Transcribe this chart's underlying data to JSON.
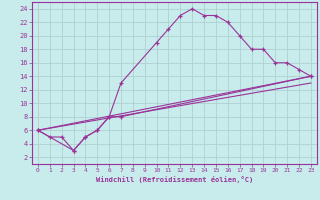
{
  "xlabel": "Windchill (Refroidissement éolien,°C)",
  "bg_color": "#c8ecec",
  "grid_color": "#b0d0d0",
  "line_color": "#993399",
  "xlim": [
    -0.5,
    23.5
  ],
  "ylim": [
    1,
    25
  ],
  "xticks": [
    0,
    1,
    2,
    3,
    4,
    5,
    6,
    7,
    8,
    9,
    10,
    11,
    12,
    13,
    14,
    15,
    16,
    17,
    18,
    19,
    20,
    21,
    22,
    23
  ],
  "yticks": [
    2,
    4,
    6,
    8,
    10,
    12,
    14,
    16,
    18,
    20,
    22,
    24
  ],
  "line1_x": [
    0,
    1,
    2,
    3,
    4,
    5,
    6,
    7,
    10,
    11,
    12,
    13,
    14,
    15,
    16,
    17,
    18,
    19,
    20,
    21,
    22,
    23
  ],
  "line1_y": [
    6,
    5,
    5,
    3,
    5,
    6,
    8,
    13,
    19,
    21,
    23,
    24,
    23,
    23,
    22,
    20,
    18,
    18,
    16,
    16,
    15,
    14
  ],
  "line2_x": [
    0,
    23
  ],
  "line2_y": [
    6,
    13
  ],
  "line3_x": [
    0,
    3,
    4,
    5,
    6,
    7,
    23
  ],
  "line3_y": [
    6,
    3,
    5,
    6,
    8,
    8,
    14
  ],
  "line4_x": [
    0,
    23
  ],
  "line4_y": [
    6,
    14
  ]
}
